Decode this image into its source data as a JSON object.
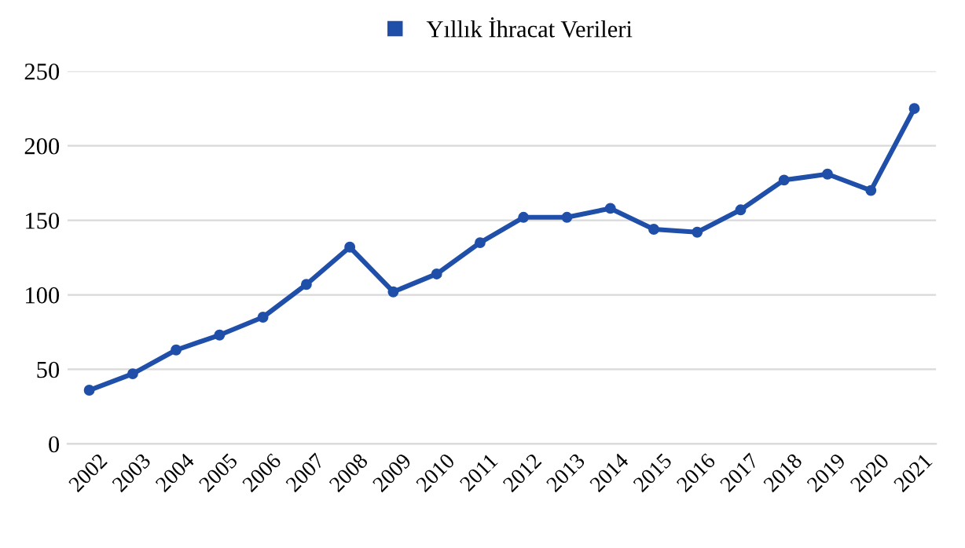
{
  "chart_data": {
    "type": "line",
    "x": [
      2002,
      2003,
      2004,
      2005,
      2006,
      2007,
      2008,
      2009,
      2010,
      2011,
      2012,
      2013,
      2014,
      2015,
      2016,
      2017,
      2018,
      2019,
      2020,
      2021
    ],
    "series": [
      {
        "name": "Yıllık İhracat Verileri",
        "color": "#1f4fa8",
        "values": [
          36,
          47,
          63,
          73,
          85,
          107,
          132,
          102,
          114,
          135,
          152,
          152,
          158,
          144,
          142,
          157,
          177,
          181,
          170,
          225
        ]
      }
    ],
    "xlim": [
      2001.5,
      2021.5
    ],
    "xticks": [
      2002,
      2003,
      2004,
      2005,
      2006,
      2007,
      2008,
      2009,
      2010,
      2011,
      2012,
      2013,
      2014,
      2015,
      2016,
      2017,
      2018,
      2019,
      2020,
      2021
    ],
    "ylim": [
      0,
      250
    ],
    "yticks": [
      0,
      50,
      100,
      150,
      200,
      250
    ],
    "grid": "y",
    "legend": "top",
    "marker": "circle",
    "line_style": "solid"
  }
}
